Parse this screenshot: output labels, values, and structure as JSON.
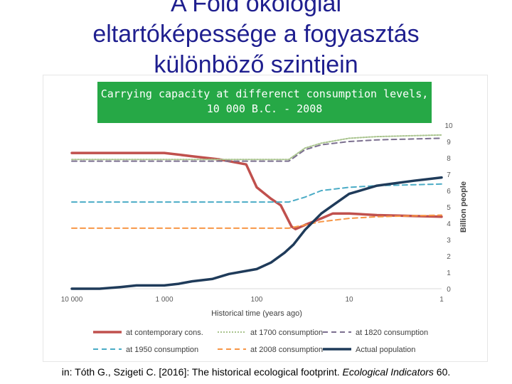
{
  "slide": {
    "title_line1": "A Föld ökológiai",
    "title_line2": "eltartóképessége a fogyasztás",
    "title_line3": "különböző szintjein"
  },
  "banner": {
    "line1": "Carrying capacity at differenct consumption levels,",
    "line2": "10 000 B.C. - 2008",
    "color": "#26a846"
  },
  "citation": {
    "prefix": "in: Tóth G., Szigeti C. [2016]: The historical ecological footprint. ",
    "journal": "Ecological Indicators",
    "suffix": " 60."
  },
  "chart_data": {
    "type": "line",
    "xlabel": "Historical time (years ago)",
    "ylabel": "Billion people",
    "x_scale": "log-reversed",
    "x_ticks": [
      10000,
      1000,
      100,
      10,
      1
    ],
    "x_tick_labels": [
      "10 000",
      "1 000",
      "100",
      "10",
      "1"
    ],
    "ylim": [
      0,
      10
    ],
    "y_ticks": [
      0,
      1,
      2,
      3,
      4,
      5,
      6,
      7,
      8,
      9,
      10
    ],
    "y_axis_side": "right",
    "legend_position": "bottom",
    "series": [
      {
        "name": "at contemporary cons.",
        "color": "#c0504d",
        "style": "solid-thick",
        "x": [
          10000,
          3000,
          1000,
          500,
          250,
          130,
          100,
          70,
          55,
          42,
          38,
          30,
          20,
          15,
          10,
          5,
          1
        ],
        "y": [
          8.3,
          8.3,
          8.3,
          8.1,
          7.9,
          7.6,
          6.2,
          5.5,
          5.1,
          3.8,
          3.65,
          3.9,
          4.3,
          4.6,
          4.6,
          4.5,
          4.4
        ]
      },
      {
        "name": "at 1700 consumption",
        "color": "#a9c48e",
        "style": "dotted",
        "x": [
          10000,
          3000,
          1000,
          100,
          45,
          30,
          20,
          10,
          5,
          1
        ],
        "y": [
          7.9,
          7.9,
          7.9,
          7.9,
          7.9,
          8.6,
          8.9,
          9.2,
          9.3,
          9.4
        ]
      },
      {
        "name": "at 1820 consumption",
        "color": "#7b6f8f",
        "style": "dashed",
        "x": [
          10000,
          3000,
          1000,
          100,
          45,
          30,
          20,
          10,
          5,
          1
        ],
        "y": [
          7.8,
          7.8,
          7.8,
          7.8,
          7.8,
          8.5,
          8.8,
          9.0,
          9.1,
          9.2
        ]
      },
      {
        "name": "at 1950 consumption",
        "color": "#4bacc6",
        "style": "dashed",
        "x": [
          10000,
          3000,
          1000,
          100,
          45,
          30,
          20,
          10,
          5,
          1
        ],
        "y": [
          5.3,
          5.3,
          5.3,
          5.3,
          5.3,
          5.6,
          6.0,
          6.2,
          6.3,
          6.4
        ]
      },
      {
        "name": "at 2008 consumption",
        "color": "#f79646",
        "style": "dashed",
        "x": [
          10000,
          3000,
          1000,
          100,
          45,
          30,
          20,
          10,
          5,
          1
        ],
        "y": [
          3.7,
          3.7,
          3.7,
          3.7,
          3.7,
          3.9,
          4.1,
          4.3,
          4.4,
          4.5
        ]
      },
      {
        "name": "Actual population",
        "color": "#1f3b5a",
        "style": "solid-thick",
        "x": [
          10000,
          5000,
          3000,
          2000,
          1000,
          700,
          500,
          300,
          200,
          100,
          70,
          50,
          40,
          30,
          20,
          15,
          10,
          5,
          2,
          1
        ],
        "y": [
          0.0,
          0.0,
          0.1,
          0.2,
          0.2,
          0.3,
          0.45,
          0.6,
          0.9,
          1.2,
          1.6,
          2.2,
          2.7,
          3.6,
          4.6,
          5.1,
          5.8,
          6.3,
          6.6,
          6.8
        ]
      }
    ]
  }
}
